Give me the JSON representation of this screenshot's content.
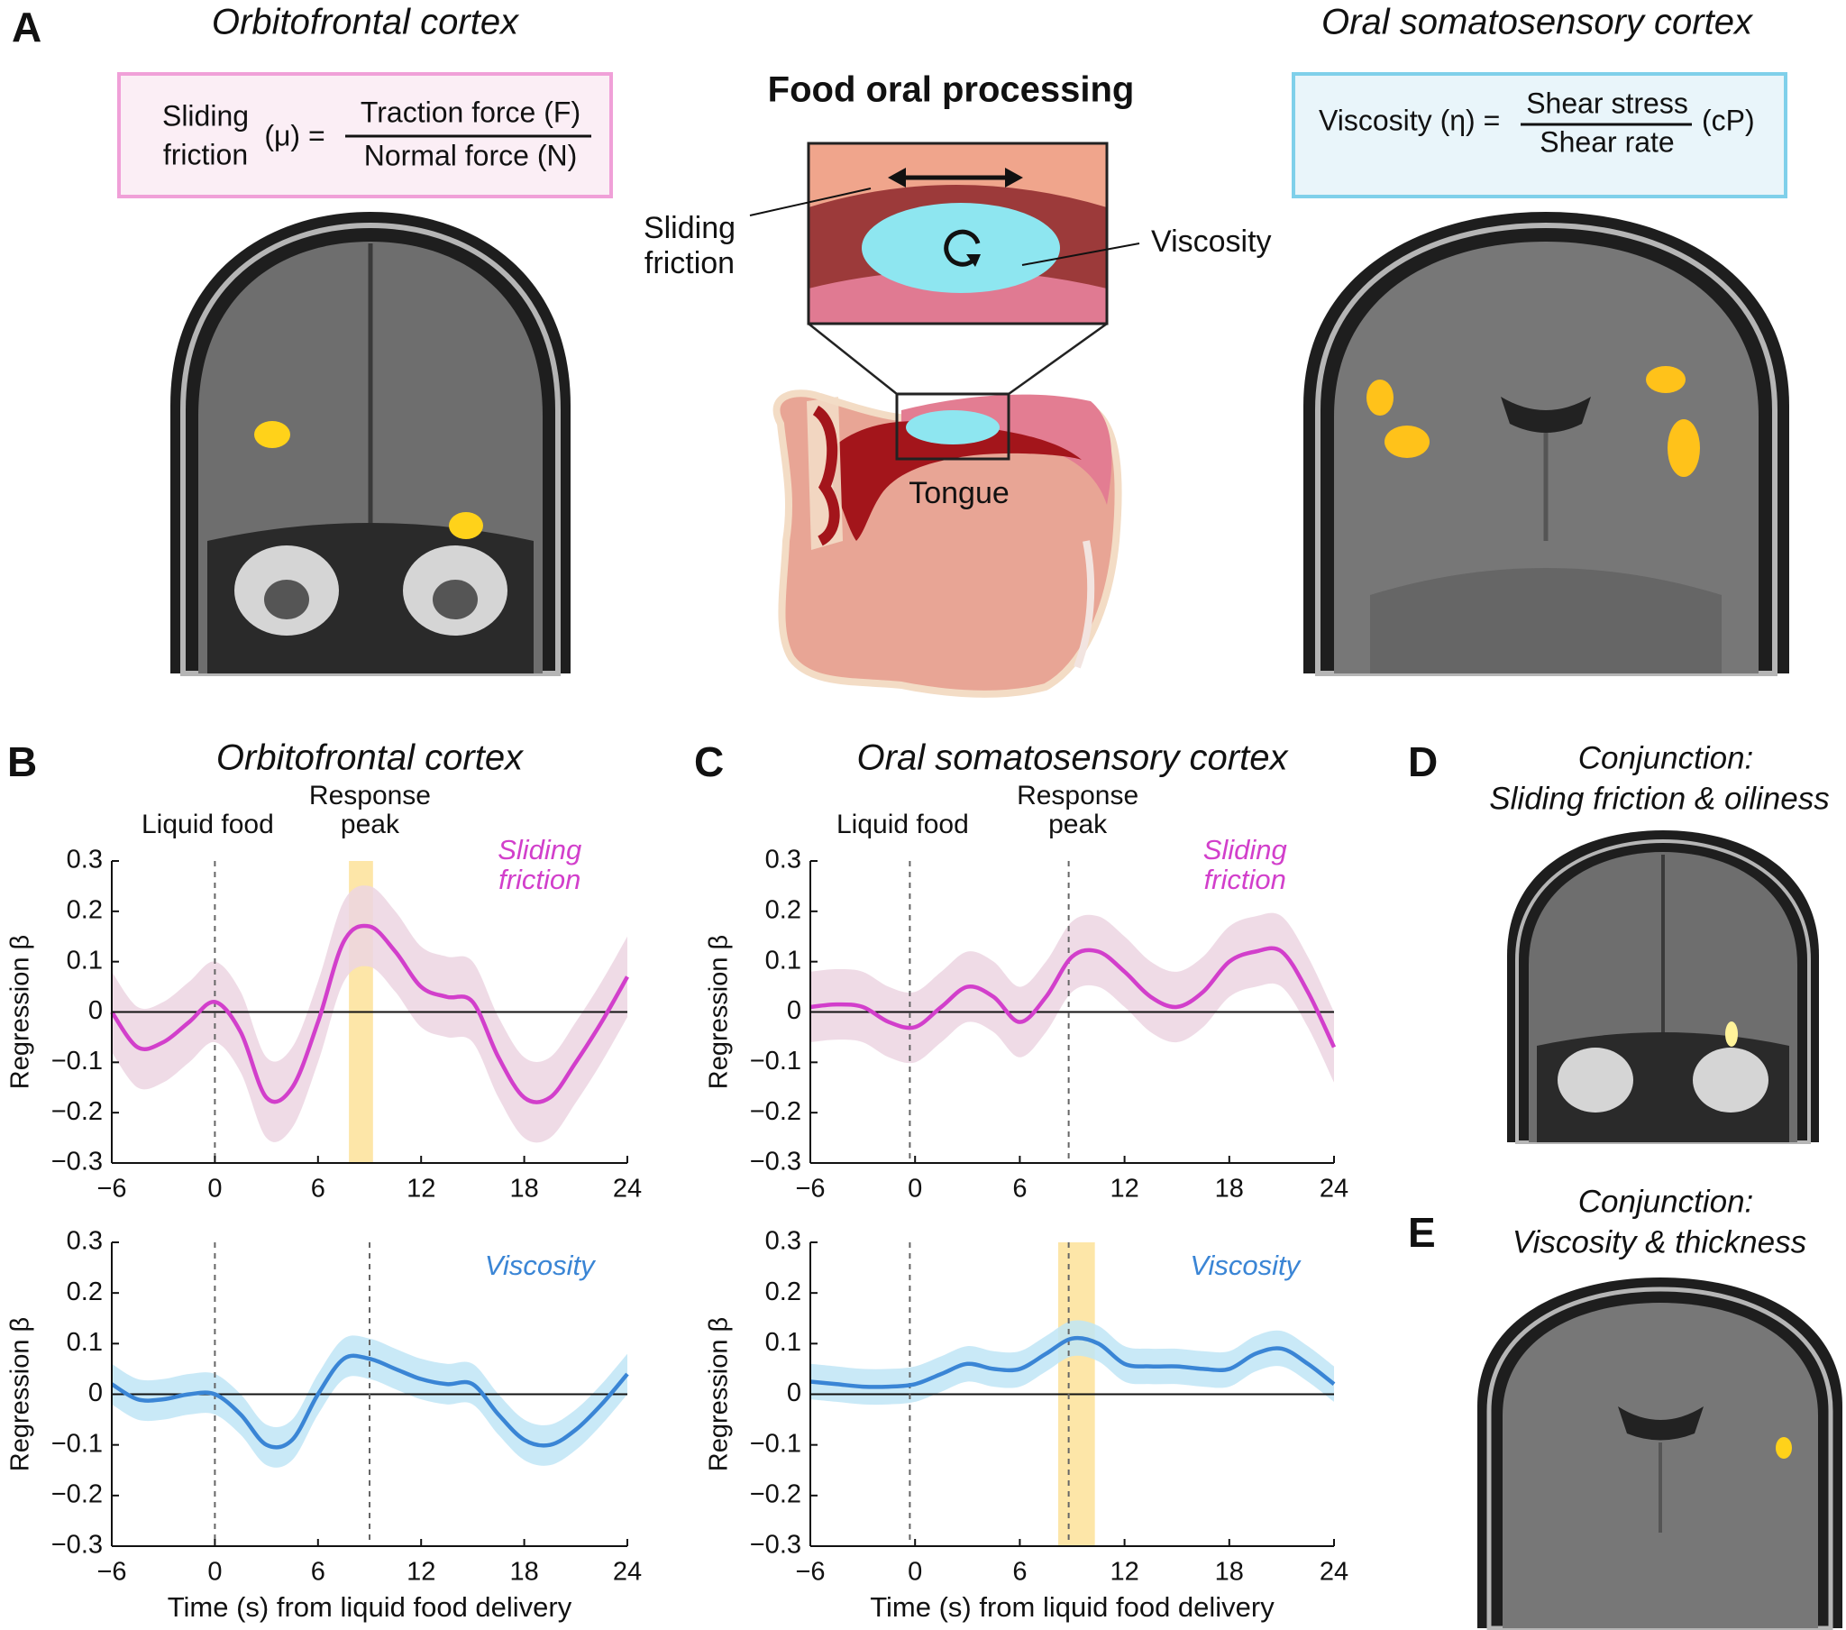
{
  "panel_a": {
    "label": "A",
    "title_left": "Orbitofrontal cortex",
    "title_right": "Oral somatosensory cortex",
    "center_title": "Food oral processing",
    "formula_left": {
      "lhs": [
        "Sliding",
        "friction"
      ],
      "symbol": "(μ) =",
      "numerator": "Traction force (F)",
      "denominator": "Normal force (N)"
    },
    "formula_right": {
      "lhs": "Viscosity (η) =",
      "numerator": "Shear stress",
      "denominator": "Shear rate",
      "unit": "(cP)"
    },
    "diagram": {
      "friction_label": [
        "Sliding",
        "friction"
      ],
      "viscosity_label": "Viscosity",
      "tongue_label": "Tongue"
    }
  },
  "panel_labels": {
    "B": "B",
    "C": "C",
    "D": "D",
    "E": "E"
  },
  "panel_d": {
    "title": [
      "Conjunction:",
      "Sliding friction & oiliness"
    ]
  },
  "panel_e": {
    "title": [
      "Conjunction:",
      "Viscosity & thickness"
    ]
  },
  "chart_data": [
    {
      "type": "line",
      "title": "Orbitofrontal cortex",
      "ylabel": "Regression β",
      "annotations": [
        "Liquid food",
        "Response peak"
      ],
      "vlines": [
        0
      ],
      "highlight": [
        7.8,
        9.2
      ],
      "x": [
        -6,
        -4.5,
        -3,
        -1.5,
        0,
        1.5,
        3,
        4.5,
        6,
        7.5,
        9,
        10.5,
        12,
        13.5,
        15,
        16.5,
        18,
        19.5,
        21,
        22.5,
        24
      ],
      "series": [
        {
          "name": "Sliding friction",
          "color": "#d23fcb",
          "band_color": "#ecd5e2",
          "values": [
            0.0,
            -0.07,
            -0.06,
            -0.02,
            0.02,
            -0.04,
            -0.17,
            -0.15,
            -0.02,
            0.14,
            0.17,
            0.12,
            0.05,
            0.03,
            0.02,
            -0.09,
            -0.17,
            -0.17,
            -0.1,
            -0.02,
            0.07
          ],
          "upper": [
            0.08,
            0.01,
            0.02,
            0.06,
            0.1,
            0.04,
            -0.09,
            -0.07,
            0.06,
            0.22,
            0.25,
            0.2,
            0.13,
            0.11,
            0.1,
            -0.01,
            -0.09,
            -0.09,
            -0.02,
            0.06,
            0.15
          ],
          "lower": [
            -0.08,
            -0.15,
            -0.14,
            -0.1,
            -0.06,
            -0.12,
            -0.25,
            -0.23,
            -0.1,
            0.06,
            0.09,
            0.04,
            -0.03,
            -0.05,
            -0.06,
            -0.17,
            -0.25,
            -0.25,
            -0.18,
            -0.1,
            -0.01
          ]
        }
      ],
      "xlim": [
        -6,
        24
      ],
      "ylim": [
        -0.3,
        0.3
      ],
      "xticks": [
        {
          "value": -6,
          "label": "−6"
        },
        0,
        6,
        12,
        18,
        24
      ],
      "yticks": [
        {
          "value": -0.3,
          "label": "−0.3"
        },
        {
          "value": -0.2,
          "label": "−0.2"
        },
        {
          "value": -0.1,
          "label": "−0.1"
        },
        0,
        0.1,
        0.2,
        0.3
      ]
    },
    {
      "type": "line",
      "ylabel": "Regression β",
      "xlabel": "Time (s) from liquid food delivery",
      "vlines": [
        0,
        9
      ],
      "x": [
        -6,
        -4.5,
        -3,
        -1.5,
        0,
        1.5,
        3,
        4.5,
        6,
        7.5,
        9,
        10.5,
        12,
        13.5,
        15,
        16.5,
        18,
        19.5,
        21,
        22.5,
        24
      ],
      "series": [
        {
          "name": "Viscosity",
          "color": "#3a85d5",
          "band_color": "#bfe5f6",
          "values": [
            0.02,
            -0.01,
            -0.01,
            0.0,
            0.0,
            -0.04,
            -0.1,
            -0.09,
            0.0,
            0.07,
            0.07,
            0.05,
            0.03,
            0.02,
            0.02,
            -0.04,
            -0.09,
            -0.1,
            -0.07,
            -0.02,
            0.04
          ],
          "upper": [
            0.06,
            0.03,
            0.03,
            0.04,
            0.04,
            0.0,
            -0.06,
            -0.05,
            0.04,
            0.11,
            0.11,
            0.09,
            0.07,
            0.06,
            0.06,
            0.0,
            -0.05,
            -0.06,
            -0.03,
            0.02,
            0.08
          ],
          "lower": [
            -0.02,
            -0.05,
            -0.05,
            -0.04,
            -0.04,
            -0.08,
            -0.14,
            -0.13,
            -0.04,
            0.03,
            0.03,
            0.01,
            -0.01,
            -0.02,
            -0.02,
            -0.08,
            -0.13,
            -0.14,
            -0.11,
            -0.06,
            0.0
          ]
        }
      ],
      "xlim": [
        -6,
        24
      ],
      "ylim": [
        -0.3,
        0.3
      ],
      "xticks": [
        {
          "value": -6,
          "label": "−6"
        },
        0,
        6,
        12,
        18,
        24
      ],
      "yticks": [
        {
          "value": -0.3,
          "label": "−0.3"
        },
        {
          "value": -0.2,
          "label": "−0.2"
        },
        {
          "value": -0.1,
          "label": "−0.1"
        },
        0,
        0.1,
        0.2,
        0.3
      ]
    },
    {
      "type": "line",
      "title": "Oral somatosensory cortex",
      "ylabel": "Regression β",
      "annotations": [
        "Liquid food",
        "Response peak"
      ],
      "vlines": [
        -0.3,
        8.8
      ],
      "x": [
        -6,
        -4.5,
        -3,
        -1.5,
        0,
        1.5,
        3,
        4.5,
        6,
        7.5,
        9,
        10.5,
        12,
        13.5,
        15,
        16.5,
        18,
        19.5,
        21,
        22.5,
        24
      ],
      "series": [
        {
          "name": "Sliding friction",
          "color": "#d23fcb",
          "band_color": "#ecd5e2",
          "values": [
            0.01,
            0.015,
            0.01,
            -0.02,
            -0.03,
            0.01,
            0.05,
            0.03,
            -0.02,
            0.03,
            0.11,
            0.12,
            0.08,
            0.03,
            0.01,
            0.04,
            0.1,
            0.12,
            0.12,
            0.04,
            -0.07
          ],
          "upper": [
            0.08,
            0.085,
            0.08,
            0.05,
            0.04,
            0.08,
            0.12,
            0.1,
            0.05,
            0.1,
            0.18,
            0.19,
            0.15,
            0.1,
            0.08,
            0.11,
            0.17,
            0.19,
            0.19,
            0.11,
            0.0
          ],
          "lower": [
            -0.06,
            -0.055,
            -0.06,
            -0.09,
            -0.1,
            -0.06,
            -0.02,
            -0.04,
            -0.09,
            -0.04,
            0.04,
            0.05,
            0.01,
            -0.04,
            -0.06,
            -0.03,
            0.03,
            0.05,
            0.05,
            -0.03,
            -0.14
          ]
        }
      ],
      "xlim": [
        -6,
        24
      ],
      "ylim": [
        -0.3,
        0.3
      ],
      "xticks": [
        {
          "value": -6,
          "label": "−6"
        },
        0,
        6,
        12,
        18,
        24
      ],
      "yticks": [
        {
          "value": -0.3,
          "label": "−0.3"
        },
        {
          "value": -0.2,
          "label": "−0.2"
        },
        {
          "value": -0.1,
          "label": "−0.1"
        },
        0,
        0.1,
        0.2,
        0.3
      ]
    },
    {
      "type": "line",
      "ylabel": "Regression β",
      "xlabel": "Time (s) from liquid food delivery",
      "vlines": [
        -0.3,
        8.8
      ],
      "highlight": [
        8.2,
        10.3
      ],
      "x": [
        -6,
        -4.5,
        -3,
        -1.5,
        0,
        1.5,
        3,
        4.5,
        6,
        7.5,
        9,
        10.5,
        12,
        13.5,
        15,
        16.5,
        18,
        19.5,
        21,
        22.5,
        24
      ],
      "series": [
        {
          "name": "Viscosity",
          "color": "#3a85d5",
          "band_color": "#bfe5f6",
          "values": [
            0.025,
            0.02,
            0.015,
            0.015,
            0.02,
            0.04,
            0.06,
            0.05,
            0.05,
            0.08,
            0.11,
            0.1,
            0.06,
            0.055,
            0.055,
            0.05,
            0.05,
            0.08,
            0.09,
            0.06,
            0.02
          ],
          "upper": [
            0.06,
            0.055,
            0.05,
            0.05,
            0.055,
            0.075,
            0.095,
            0.085,
            0.085,
            0.115,
            0.145,
            0.135,
            0.095,
            0.09,
            0.09,
            0.085,
            0.085,
            0.115,
            0.125,
            0.095,
            0.055
          ],
          "lower": [
            -0.01,
            -0.015,
            -0.02,
            -0.02,
            -0.015,
            0.005,
            0.025,
            0.015,
            0.015,
            0.045,
            0.075,
            0.065,
            0.025,
            0.02,
            0.02,
            0.015,
            0.015,
            0.045,
            0.055,
            0.025,
            -0.015
          ]
        }
      ],
      "xlim": [
        -6,
        24
      ],
      "ylim": [
        -0.3,
        0.3
      ],
      "xticks": [
        {
          "value": -6,
          "label": "−6"
        },
        0,
        6,
        12,
        18,
        24
      ],
      "yticks": [
        {
          "value": -0.3,
          "label": "−0.3"
        },
        {
          "value": -0.2,
          "label": "−0.2"
        },
        {
          "value": -0.1,
          "label": "−0.1"
        },
        0,
        0.1,
        0.2,
        0.3
      ]
    }
  ]
}
